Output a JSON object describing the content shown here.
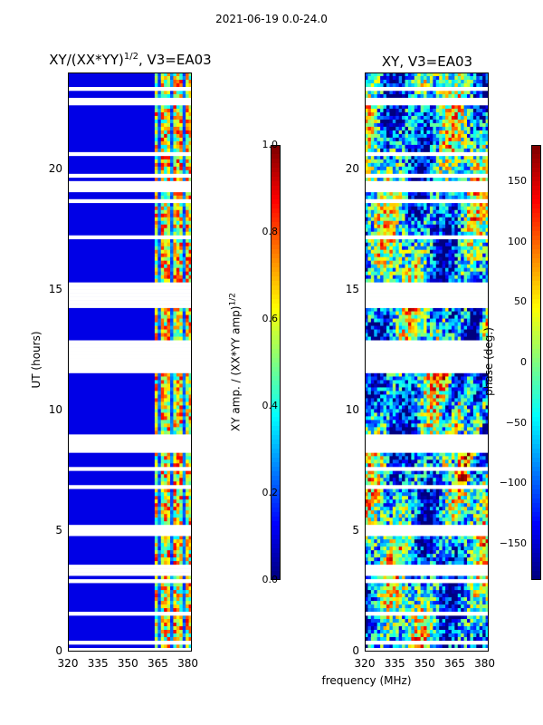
{
  "suptitle": "2021-06-19 0.0-24.0",
  "chart_data": [
    {
      "type": "heatmap",
      "title_base": "XY/(XX*YY)",
      "title_exp": "1/2",
      "title_suffix": ", V3=EA03",
      "xlabel": "",
      "ylabel": "UT (hours)",
      "xlim": [
        320,
        382
      ],
      "ylim": [
        0,
        24
      ],
      "xticks": [
        "320",
        "335",
        "350",
        "365",
        "380"
      ],
      "yticks": [
        "0",
        "5",
        "10",
        "15",
        "20"
      ],
      "colorbar": {
        "label_base": "XY amp. / (XX*YY amp)",
        "label_exp": "1/2",
        "range": [
          0.0,
          1.0
        ],
        "ticks": [
          "0.0",
          "0.2",
          "0.4",
          "0.6",
          "0.8",
          "1.0"
        ],
        "colormap": "jet"
      },
      "description_values": {
        "low_band_level": 0.1,
        "high_band_level_range": [
          0.3,
          0.95
        ],
        "high_band_start_mhz": 364
      }
    },
    {
      "type": "heatmap",
      "title": "XY, V3=EA03",
      "xlabel": "frequency (MHz)",
      "ylabel": "",
      "xlim": [
        320,
        382
      ],
      "ylim": [
        0,
        24
      ],
      "xticks": [
        "320",
        "335",
        "350",
        "365",
        "380"
      ],
      "yticks": [
        "0",
        "5",
        "10",
        "15",
        "20"
      ],
      "colorbar": {
        "label": "phase (deg.)",
        "range": [
          -180,
          180
        ],
        "ticks": [
          "−150",
          "−100",
          "−50",
          "0",
          "50",
          "100",
          "150"
        ],
        "colormap": "jet"
      }
    }
  ]
}
